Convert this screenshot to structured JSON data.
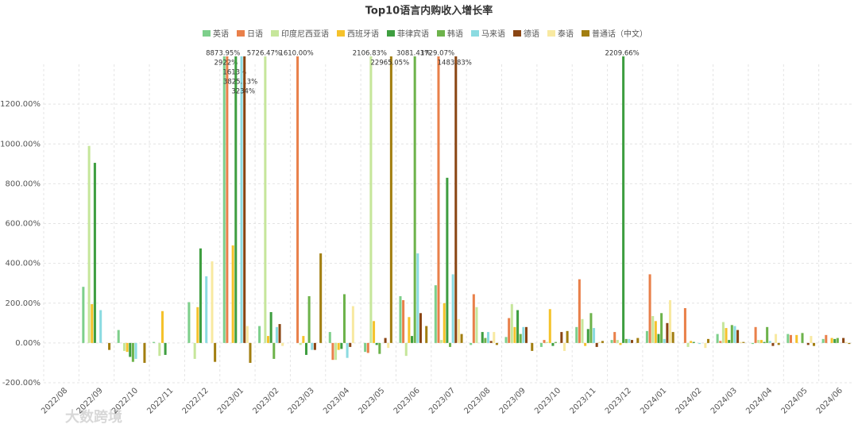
{
  "chart_data": {
    "type": "bar",
    "title": "Top10语言内购收入增长率",
    "watermark": "大数跨境",
    "categories": [
      "2022/08",
      "2022/09",
      "2022/10",
      "2022/11",
      "2022/12",
      "2023/01",
      "2023/02",
      "2023/03",
      "2023/04",
      "2023/05",
      "2023/06",
      "2023/07",
      "2023/08",
      "2023/09",
      "2023/10",
      "2023/11",
      "2023/12",
      "2024/01",
      "2024/02",
      "2024/03",
      "2024/04",
      "2024/05",
      "2024/06"
    ],
    "ylim": [
      -200,
      1400
    ],
    "yticks": [
      {
        "value": -200,
        "label": "-200.00%"
      },
      {
        "value": 0,
        "label": "0.00%"
      },
      {
        "value": 200,
        "label": "200.00%"
      },
      {
        "value": 400,
        "label": "400.00%"
      },
      {
        "value": 600,
        "label": "600.00%"
      },
      {
        "value": 800,
        "label": "800.00%"
      },
      {
        "value": 1000,
        "label": "1000.00%"
      },
      {
        "value": 1200,
        "label": "1200.00%"
      }
    ],
    "grid": true,
    "legend": "top",
    "series": [
      {
        "name": "英语",
        "color": "#7dcf8b",
        "values": [
          null,
          282,
          65,
          5,
          205,
          8873.95,
          85,
          null,
          55,
          -45,
          235,
          290,
          -10,
          30,
          -20,
          80,
          15,
          60,
          null,
          45,
          -5,
          45,
          20
        ],
        "value_labels": [
          null,
          null,
          null,
          null,
          null,
          "8873.95%",
          null,
          null,
          null,
          null,
          null,
          null,
          null,
          null,
          null,
          null,
          null,
          null,
          null,
          null,
          null,
          null,
          null
        ]
      },
      {
        "name": "日语",
        "color": "#e9804a",
        "values": [
          null,
          null,
          null,
          null,
          null,
          2922,
          null,
          1610,
          -85,
          -50,
          215,
          1729.07,
          245,
          125,
          15,
          320,
          55,
          345,
          175,
          10,
          80,
          40,
          40
        ],
        "value_labels": [
          null,
          null,
          null,
          null,
          null,
          "2922%",
          null,
          "1610.00%",
          null,
          null,
          null,
          "1729.07%",
          null,
          null,
          null,
          null,
          null,
          null,
          null,
          null,
          null,
          null,
          null
        ]
      },
      {
        "name": "印度尼西亚语",
        "color": "#c6e69b",
        "values": [
          null,
          990,
          -40,
          -65,
          -80,
          null,
          5726.47,
          -10,
          -85,
          2106.83,
          -65,
          15,
          180,
          195,
          5,
          120,
          15,
          135,
          -20,
          105,
          15,
          null,
          null
        ],
        "value_labels": [
          null,
          null,
          null,
          null,
          null,
          null,
          "5726.47%",
          null,
          null,
          "2106.83%",
          null,
          null,
          null,
          null,
          null,
          null,
          null,
          null,
          null,
          null,
          null,
          null,
          null
        ]
      },
      {
        "name": "西班牙语",
        "color": "#f5c22b",
        "values": [
          null,
          195,
          -45,
          160,
          180,
          490,
          35,
          35,
          -35,
          110,
          130,
          200,
          null,
          80,
          170,
          -15,
          -10,
          110,
          10,
          75,
          15,
          40,
          25
        ],
        "value_labels": [
          null,
          null,
          null,
          null,
          null,
          null,
          null,
          null,
          null,
          null,
          null,
          null,
          null,
          null,
          null,
          null,
          null,
          null,
          null,
          null,
          null,
          null,
          null
        ]
      },
      {
        "name": "菲律宾语",
        "color": "#3e9e40",
        "values": [
          null,
          905,
          -70,
          -60,
          475,
          1613,
          155,
          -60,
          -30,
          -10,
          35,
          830,
          55,
          165,
          -15,
          70,
          2209.66,
          45,
          5,
          15,
          5,
          null,
          20
        ],
        "value_labels": [
          null,
          null,
          null,
          null,
          null,
          "1613%",
          null,
          null,
          null,
          null,
          null,
          null,
          null,
          null,
          null,
          null,
          "2209.66%",
          null,
          null,
          null,
          null,
          null,
          null
        ]
      },
      {
        "name": "韩语",
        "color": "#6db34b",
        "values": [
          null,
          null,
          -95,
          null,
          null,
          null,
          -80,
          235,
          245,
          -55,
          3081.43,
          -20,
          25,
          45,
          5,
          150,
          20,
          150,
          null,
          90,
          80,
          50,
          25
        ],
        "value_labels": [
          null,
          null,
          null,
          null,
          null,
          null,
          null,
          null,
          null,
          null,
          "3081.43%",
          null,
          null,
          null,
          null,
          null,
          null,
          null,
          null,
          null,
          null,
          null,
          null
        ]
      },
      {
        "name": "马来语",
        "color": "#8bdbe1",
        "values": [
          null,
          165,
          -80,
          null,
          335,
          3825.13,
          80,
          -35,
          -75,
          null,
          450,
          345,
          55,
          80,
          null,
          75,
          20,
          20,
          -5,
          85,
          10,
          null,
          null
        ],
        "value_labels": [
          null,
          null,
          null,
          null,
          null,
          "3825.13%",
          null,
          null,
          null,
          null,
          null,
          null,
          null,
          null,
          null,
          null,
          null,
          null,
          null,
          null,
          null,
          null,
          null
        ]
      },
      {
        "name": "德语",
        "color": "#8a4513",
        "values": [
          null,
          null,
          null,
          null,
          null,
          3234,
          95,
          -35,
          -20,
          25,
          150,
          1483.83,
          10,
          80,
          55,
          -20,
          15,
          100,
          null,
          65,
          -15,
          -10,
          25
        ],
        "value_labels": [
          null,
          null,
          null,
          null,
          null,
          "3234%",
          null,
          null,
          null,
          null,
          null,
          "1483.83%",
          null,
          null,
          null,
          null,
          null,
          null,
          null,
          null,
          null,
          null,
          null
        ]
      },
      {
        "name": "泰语",
        "color": "#f8e9a1",
        "values": [
          null,
          null,
          null,
          null,
          410,
          85,
          -15,
          null,
          185,
          -25,
          null,
          120,
          55,
          null,
          -40,
          5,
          null,
          215,
          -25,
          5,
          45,
          35,
          5
        ],
        "value_labels": [
          null,
          null,
          null,
          null,
          null,
          null,
          null,
          null,
          null,
          null,
          null,
          null,
          null,
          null,
          null,
          null,
          null,
          null,
          null,
          null,
          null,
          null,
          null
        ]
      },
      {
        "name": "普通话（中文）",
        "color": "#a27e10",
        "values": [
          null,
          -35,
          -100,
          null,
          -95,
          -100,
          null,
          450,
          null,
          22965.05,
          85,
          45,
          -10,
          -40,
          60,
          10,
          25,
          55,
          20,
          5,
          -10,
          -15,
          -5
        ],
        "value_labels": [
          null,
          null,
          null,
          null,
          null,
          null,
          null,
          null,
          null,
          "22965.05%",
          null,
          null,
          null,
          null,
          null,
          null,
          null,
          null,
          null,
          null,
          null,
          null,
          null
        ]
      }
    ]
  }
}
